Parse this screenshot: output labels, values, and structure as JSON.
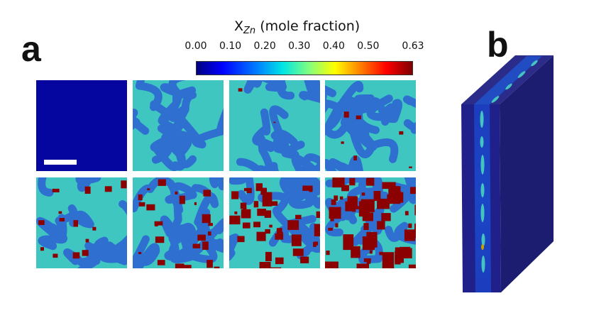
{
  "panel_labels": {
    "a": "a",
    "b": "b"
  },
  "colorbar": {
    "title_main": "X",
    "title_sub": "Zn",
    "title_suffix": "(mole fraction)",
    "ticks": [
      "0.00",
      "0.10",
      "0.20",
      "0.30",
      "0.40",
      "0.50",
      "0.63"
    ],
    "tick_values": [
      0.0,
      0.1,
      0.2,
      0.3,
      0.4,
      0.5,
      0.63
    ],
    "range": [
      0.0,
      0.63
    ],
    "colormap": "jet"
  },
  "colors": {
    "matrix_blue": "#2e6fd0",
    "lamella_cyan": "#3fc6c0",
    "zn_red": "#8b0000",
    "initial": "#0505a0",
    "block_face": "#1d1d78",
    "block_side": "#262688"
  },
  "tiles": {
    "rows": 2,
    "cols": 4,
    "zn_coverage": [
      0.0,
      0.0,
      0.02,
      0.05,
      0.12,
      0.22,
      0.35,
      0.5
    ]
  }
}
